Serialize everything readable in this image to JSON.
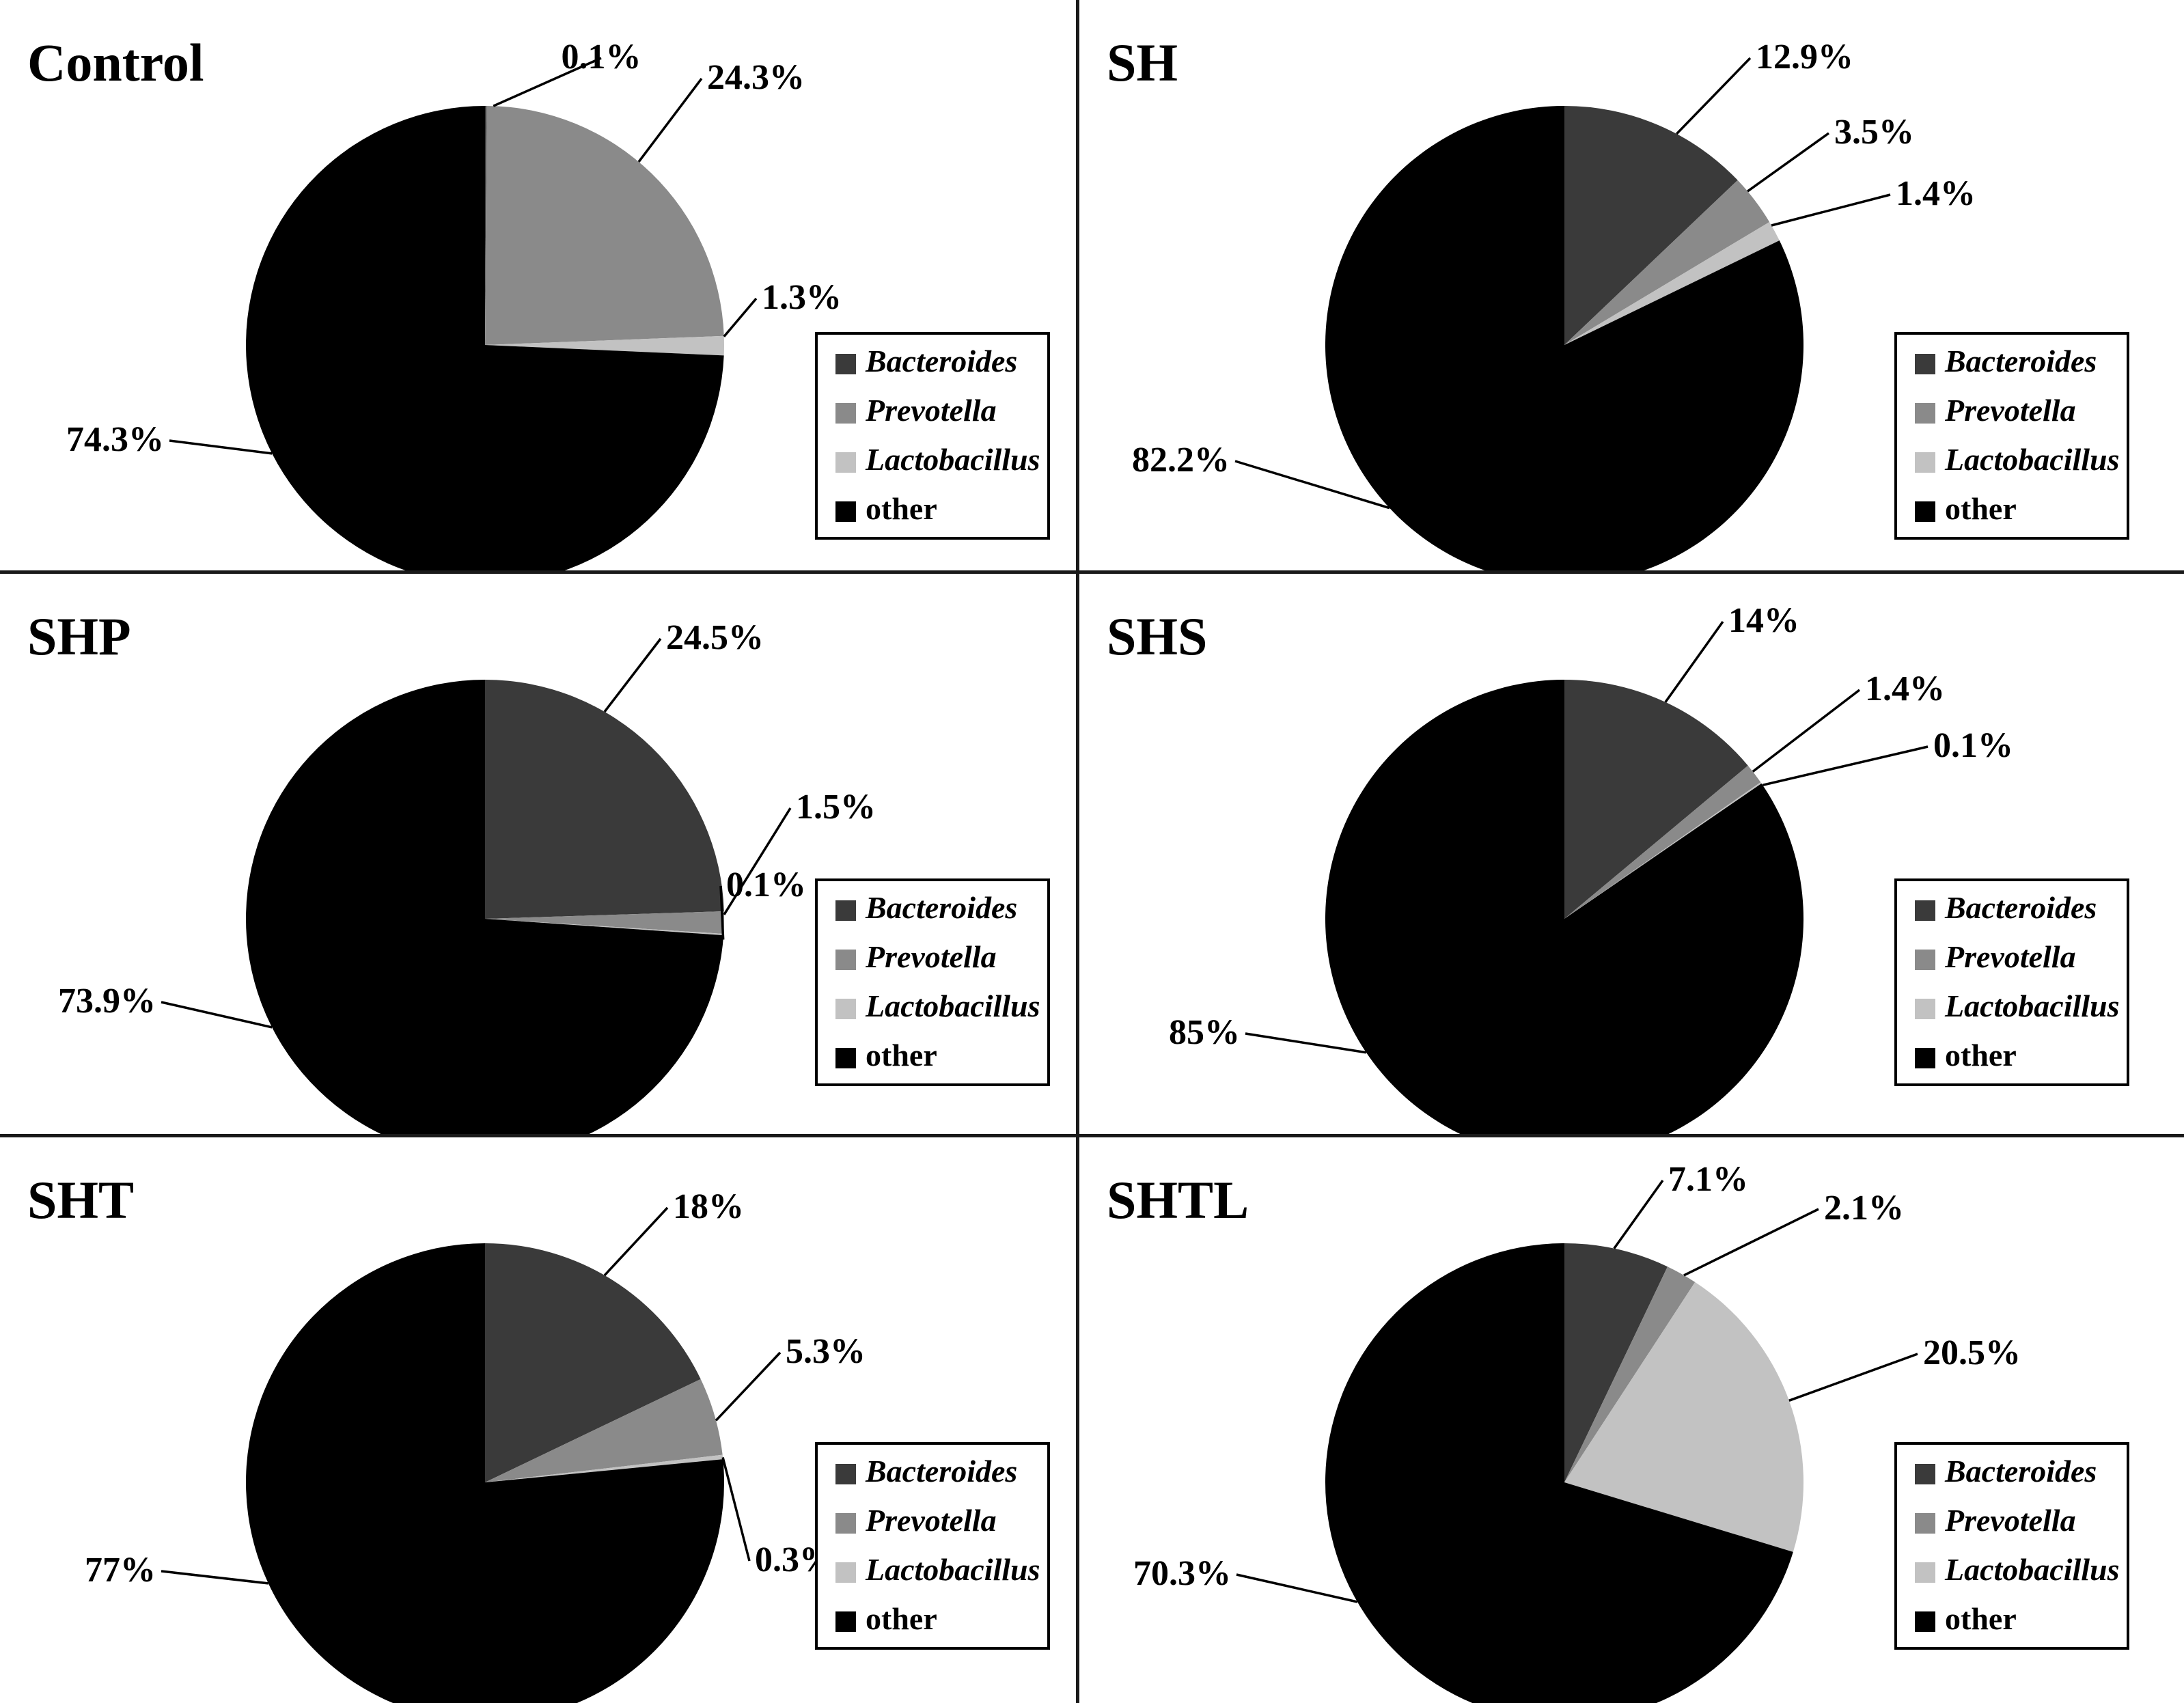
{
  "figure_colors": {
    "bacteroides": "#3a3a3a",
    "prevotella": "#8a8a8a",
    "lactobacillus": "#c2c2c2",
    "other": "#000000",
    "background": "#ffffff",
    "divider": "#1a1a1a"
  },
  "legend": {
    "items": [
      {
        "label": "Bacteroides",
        "color": "#3a3a3a",
        "italic": true
      },
      {
        "label": "Prevotella",
        "color": "#8a8a8a",
        "italic": true
      },
      {
        "label": "Lactobacillus",
        "color": "#c2c2c2",
        "italic": true
      },
      {
        "label": "other",
        "color": "#000000",
        "italic": false
      }
    ]
  },
  "chart_data": [
    {
      "type": "pie",
      "title": "Control",
      "labels": [
        "Bacteroides",
        "Prevotella",
        "Lactobacillus",
        "other"
      ],
      "values": [
        0.1,
        24.3,
        1.3,
        74.3
      ],
      "display_labels": [
        "0.1%",
        "24.3%",
        "1.3%",
        "74.3%"
      ],
      "colors": [
        "#3a3a3a",
        "#8a8a8a",
        "#c2c2c2",
        "#000000"
      ],
      "start_angle_deg": 0,
      "direction": "clockwise",
      "legend_position": "right"
    },
    {
      "type": "pie",
      "title": "SH",
      "labels": [
        "Bacteroides",
        "Prevotella",
        "Lactobacillus",
        "other"
      ],
      "values": [
        12.9,
        3.5,
        1.4,
        82.2
      ],
      "display_labels": [
        "12.9%",
        "3.5%",
        "1.4%",
        "82.2%"
      ],
      "colors": [
        "#3a3a3a",
        "#8a8a8a",
        "#c2c2c2",
        "#000000"
      ],
      "start_angle_deg": 0,
      "direction": "clockwise",
      "legend_position": "right"
    },
    {
      "type": "pie",
      "title": "SHP",
      "labels": [
        "Bacteroides",
        "Prevotella",
        "Lactobacillus",
        "other"
      ],
      "values": [
        24.5,
        1.5,
        0.1,
        73.9
      ],
      "display_labels": [
        "24.5%",
        "1.5%",
        "0.1%",
        "73.9%"
      ],
      "colors": [
        "#3a3a3a",
        "#8a8a8a",
        "#c2c2c2",
        "#000000"
      ],
      "start_angle_deg": 0,
      "direction": "clockwise",
      "legend_position": "right"
    },
    {
      "type": "pie",
      "title": "SHS",
      "labels": [
        "Bacteroides",
        "Prevotella",
        "Lactobacillus",
        "other"
      ],
      "values": [
        14,
        1.4,
        0.1,
        85
      ],
      "display_labels": [
        "14%",
        "1.4%",
        "0.1%",
        "85%"
      ],
      "colors": [
        "#3a3a3a",
        "#8a8a8a",
        "#c2c2c2",
        "#000000"
      ],
      "start_angle_deg": 0,
      "direction": "clockwise",
      "legend_position": "right"
    },
    {
      "type": "pie",
      "title": "SHT",
      "labels": [
        "Bacteroides",
        "Prevotella",
        "Lactobacillus",
        "other"
      ],
      "values": [
        18,
        5.3,
        0.3,
        77
      ],
      "display_labels": [
        "18%",
        "5.3%",
        "0.3%",
        "77%"
      ],
      "colors": [
        "#3a3a3a",
        "#8a8a8a",
        "#c2c2c2",
        "#000000"
      ],
      "start_angle_deg": 0,
      "direction": "clockwise",
      "legend_position": "right"
    },
    {
      "type": "pie",
      "title": "SHTL",
      "labels": [
        "Bacteroides",
        "Prevotella",
        "Lactobacillus",
        "other"
      ],
      "values": [
        7.1,
        2.1,
        20.5,
        70.3
      ],
      "display_labels": [
        "7.1%",
        "2.1%",
        "20.5%",
        "70.3%"
      ],
      "colors": [
        "#3a3a3a",
        "#8a8a8a",
        "#c2c2c2",
        "#000000"
      ],
      "start_angle_deg": 0,
      "direction": "clockwise",
      "legend_position": "right"
    }
  ]
}
